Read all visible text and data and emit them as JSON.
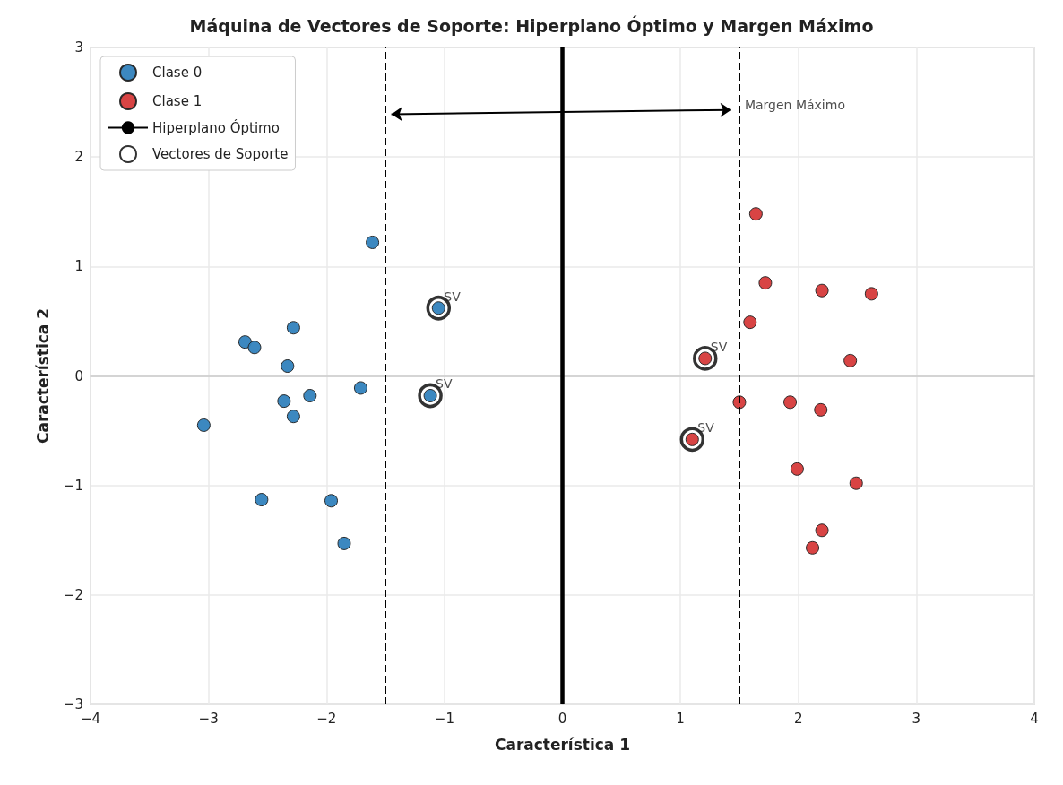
{
  "chart_data": {
    "type": "scatter",
    "title": "Máquina de Vectores de Soporte: Hiperplano Óptimo y Margen Máximo",
    "xlabel": "Característica 1",
    "ylabel": "Característica 2",
    "series": [
      {
        "name": "Clase 0",
        "color": "#3182bd",
        "x": [
          -1.61,
          -1.05,
          -2.28,
          -2.69,
          -2.61,
          -2.33,
          -1.71,
          -2.14,
          -2.36,
          -2.28,
          -1.12,
          -3.04,
          -2.55,
          -1.96,
          -1.85
        ],
        "values": [
          1.22,
          0.62,
          0.44,
          0.31,
          0.26,
          0.09,
          -0.11,
          -0.18,
          -0.23,
          -0.37,
          -0.18,
          -0.45,
          -1.13,
          -1.14,
          -1.53
        ]
      },
      {
        "name": "Clase 1",
        "color": "#d63a3a",
        "x": [
          1.64,
          1.72,
          2.2,
          2.62,
          1.59,
          1.21,
          2.44,
          1.5,
          1.93,
          2.19,
          1.1,
          1.99,
          2.49,
          2.2,
          2.12
        ],
        "values": [
          1.48,
          0.85,
          0.78,
          0.75,
          0.49,
          0.16,
          0.14,
          -0.24,
          -0.24,
          -0.31,
          -0.58,
          -0.85,
          -0.98,
          -1.41,
          -1.57
        ]
      },
      {
        "name": "Hiperplano Óptimo",
        "type": "line",
        "color": "#000000",
        "marker": "none",
        "x": [
          0,
          0
        ],
        "values": [
          -3,
          3
        ]
      },
      {
        "name": "Vectores de Soporte",
        "color": "#000000",
        "marker": "circle",
        "x": [
          -1.05,
          -1.12,
          1.21,
          1.1
        ],
        "values": [
          0.62,
          -0.18,
          0.16,
          -0.58
        ]
      }
    ],
    "ref_lines": [
      {
        "axis": "x",
        "value": -1.5,
        "color": "#000000",
        "line_style": "dashed"
      },
      {
        "axis": "x",
        "value": 1.5,
        "color": "#000000",
        "line_style": "dashed"
      }
    ],
    "annotations": [
      {
        "text": "Margen Máximo",
        "x": 1.5,
        "y": 2.37
      },
      {
        "text": "SV",
        "x": -1.05,
        "y": 0.62
      },
      {
        "text": "SV",
        "x": -1.12,
        "y": -0.18
      },
      {
        "text": "SV",
        "x": 1.21,
        "y": 0.16
      },
      {
        "text": "SV",
        "x": 1.1,
        "y": -0.58
      }
    ],
    "xlim": [
      -4,
      4
    ],
    "ylim": [
      -3,
      3
    ],
    "xticks": [
      -4,
      -3,
      -2,
      -1,
      0,
      1,
      2,
      3,
      4
    ],
    "yticks": [
      -3,
      -2,
      -1,
      0,
      1,
      2,
      3
    ],
    "grid": true,
    "legend": "top left",
    "marker": "circle"
  }
}
